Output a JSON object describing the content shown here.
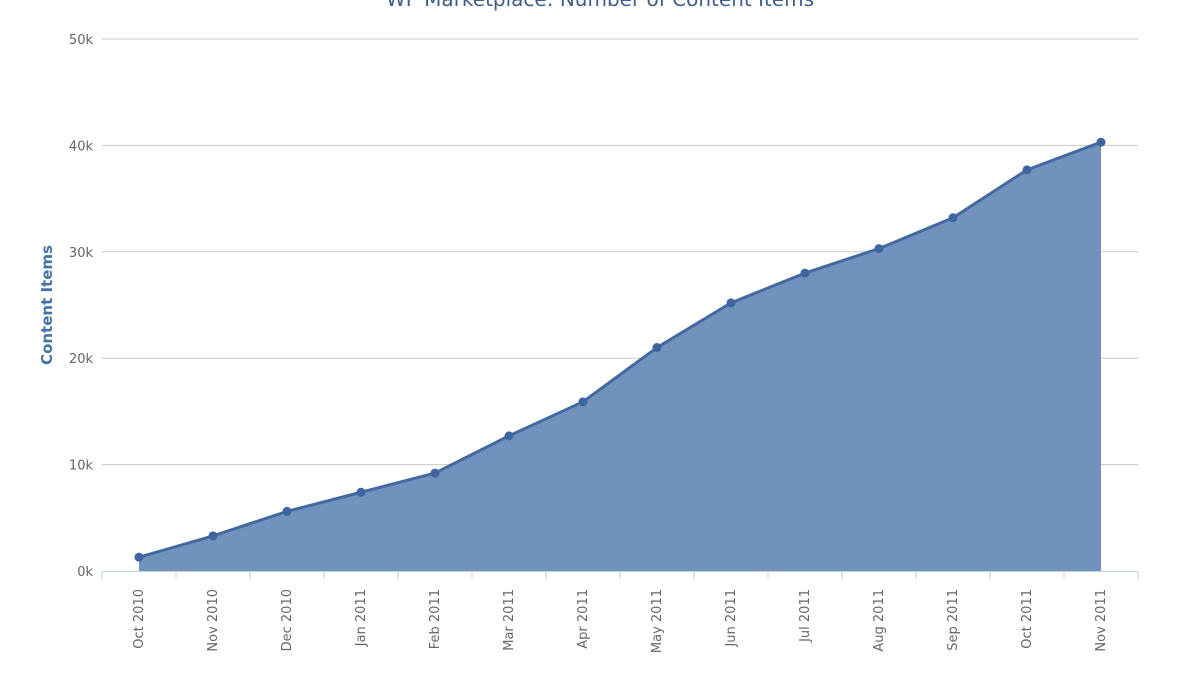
{
  "chart_data": {
    "type": "area",
    "title": "WP Marketplace: Number of Content Items",
    "xlabel": "",
    "ylabel": "Content Items",
    "categories": [
      "Oct 2010",
      "Nov 2010",
      "Dec 2010",
      "Jan 2011",
      "Feb 2011",
      "Mar 2011",
      "Apr 2011",
      "May 2011",
      "Jun 2011",
      "Jul 2011",
      "Aug 2011",
      "Sep 2011",
      "Oct 2011",
      "Nov 2011"
    ],
    "values": [
      1300,
      3300,
      5600,
      7400,
      9200,
      12700,
      15900,
      21000,
      25200,
      28000,
      30300,
      33200,
      37700,
      40300
    ],
    "ylim": [
      0,
      50000
    ],
    "yticks": [
      0,
      10000,
      20000,
      30000,
      40000,
      50000
    ],
    "ytick_labels": [
      "0k",
      "10k",
      "20k",
      "30k",
      "40k",
      "50k"
    ],
    "grid": true,
    "legend": "none",
    "colors": {
      "fill": "#7092bc",
      "line": "#4369a0",
      "marker": "#3d66a0",
      "axis_title": "#4572a7",
      "title": "#3e5f8a"
    }
  }
}
